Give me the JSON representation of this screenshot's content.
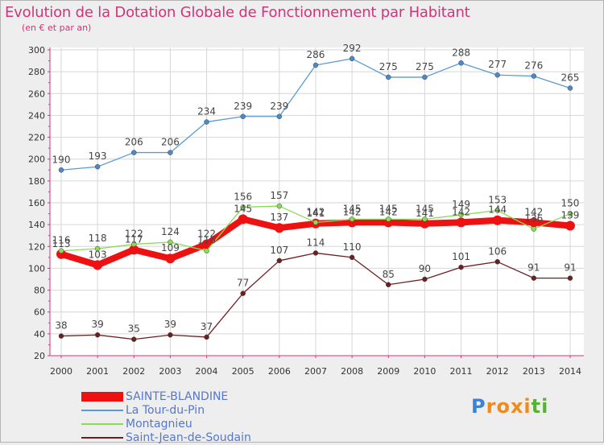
{
  "title": "Evolution de la Dotation Globale de Fonctionnement par Habitant",
  "subtitle": "(en € et par an)",
  "logo": {
    "text": "Proxiti",
    "letters": [
      "P",
      "r",
      "o",
      "x",
      "i",
      "t",
      "i"
    ],
    "colors": [
      "#3b82d6",
      "#f08a1c",
      "#f08a1c",
      "#f08a1c",
      "#f08a1c",
      "#58b23a",
      "#58b23a"
    ]
  },
  "chart_data": {
    "type": "line",
    "title": "Evolution de la Dotation Globale de Fonctionnement par Habitant",
    "subtitle": "(en € et par an)",
    "xlabel": "",
    "ylabel": "",
    "x": [
      "2000",
      "2001",
      "2002",
      "2003",
      "2004",
      "2005",
      "2006",
      "2007",
      "2008",
      "2009",
      "2010",
      "2011",
      "2012",
      "2013",
      "2014"
    ],
    "ylim": [
      20,
      300
    ],
    "yticks": [
      20,
      40,
      60,
      80,
      100,
      120,
      140,
      160,
      180,
      200,
      220,
      240,
      260,
      280,
      300
    ],
    "grid": true,
    "legend": "bottom-left",
    "series": [
      {
        "name": "SAINTE-BLANDINE",
        "color": "#ee1111",
        "values": [
          113,
          103,
          117,
          109,
          122,
          145,
          137,
          141,
          142,
          142,
          141,
          142,
          144,
          142,
          139
        ]
      },
      {
        "name": "La Tour-du-Pin",
        "color": "#5a9bd5",
        "values": [
          190,
          193,
          206,
          206,
          234,
          239,
          239,
          286,
          292,
          275,
          275,
          288,
          277,
          276,
          265
        ]
      },
      {
        "name": "Montagnieu",
        "color": "#88dd55",
        "values": [
          116,
          118,
          122,
          124,
          116,
          156,
          157,
          142,
          145,
          145,
          145,
          149,
          153,
          136,
          150
        ]
      },
      {
        "name": "Saint-Jean-de-Soudain",
        "color": "#6b2020",
        "values": [
          38,
          39,
          35,
          39,
          37,
          77,
          107,
          114,
          110,
          85,
          90,
          101,
          106,
          91,
          91
        ]
      }
    ]
  }
}
